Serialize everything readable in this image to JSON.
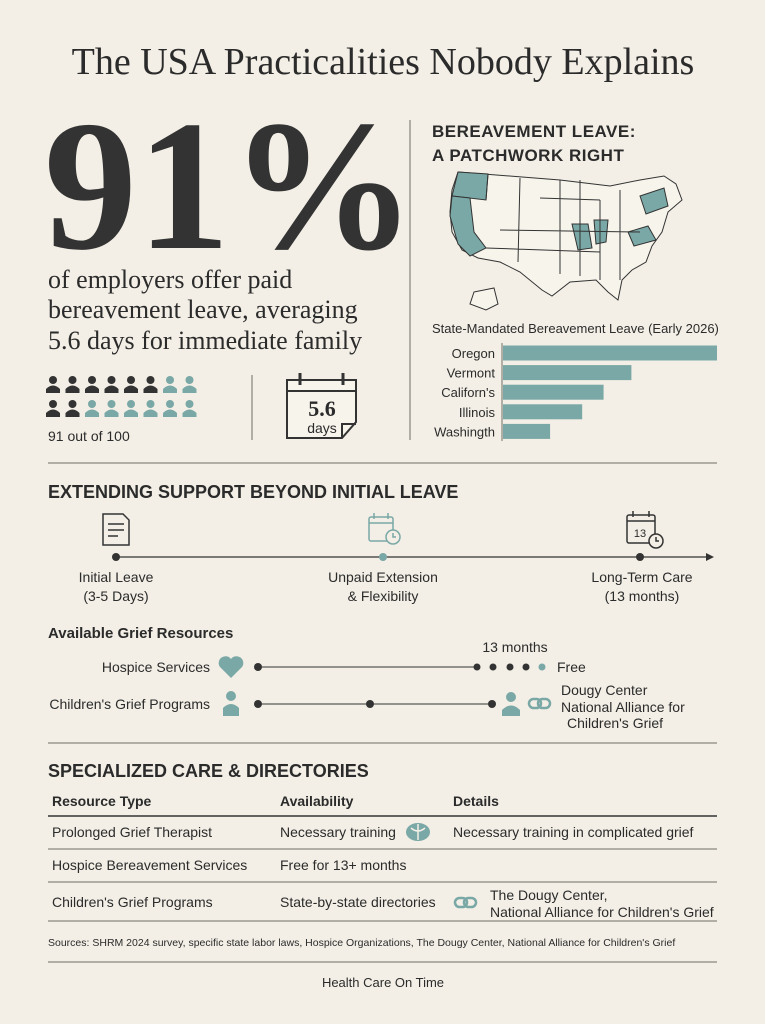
{
  "title": "The USA Practicalities Nobody Explains",
  "stat": {
    "headline": "91%",
    "text_lines": [
      "of employers offer paid",
      "bereavement leave, averaging",
      "5.6 days for immediate family"
    ],
    "icon_caption": "91 out of 100",
    "days_value": "5.6",
    "days_unit": "days"
  },
  "map": {
    "title_lines": [
      "BEREAVEMENT LEAVE:",
      "A PATCHWORK RIGHT"
    ]
  },
  "chart_data": {
    "type": "bar",
    "orientation": "horizontal",
    "title": "State-Mandated Bereavement Leave (Early 2026)",
    "categories": [
      "Oregon",
      "Vermont",
      "Californ's",
      "Illinois",
      "Washingth"
    ],
    "values": [
      100,
      60,
      47,
      37,
      22
    ],
    "color": "#7aa8a6"
  },
  "timeline": {
    "title": "EXTENDING SUPPORT BEYOND INITIAL LEAVE",
    "stages": [
      {
        "lines": [
          "Initial Leave",
          "(3-5 Days)"
        ]
      },
      {
        "lines": [
          "Unpaid Extension",
          "& Flexibility"
        ]
      },
      {
        "lines": [
          "Long-Term Care",
          "(13 months)"
        ],
        "icon_text": "13"
      }
    ]
  },
  "resources": {
    "title": "Available Grief Resources",
    "rows": [
      {
        "label": "Hospice Services",
        "duration": "13 months",
        "note_lines": [
          "Free"
        ]
      },
      {
        "label": "Children's Grief Programs",
        "note_lines": [
          "Dougy Center",
          "National Alliance for",
          "Children's Grief"
        ]
      }
    ]
  },
  "table": {
    "title": "SPECIALIZED CARE & DIRECTORIES",
    "headers": [
      "Resource Type",
      "Availability",
      "Details"
    ],
    "rows": [
      [
        [
          "Prolonged Grief Therapist"
        ],
        [
          "Necessary training"
        ],
        [
          "Necessary training in complicated grief"
        ]
      ],
      [
        [
          "Hospice Bereavement Services"
        ],
        [
          "Free for 13+ months"
        ],
        []
      ],
      [
        [
          "Children's Grief Programs"
        ],
        [
          "State-by-state directories"
        ],
        [
          "The Dougy Center,",
          "National Alliance for Children's Grief"
        ]
      ]
    ]
  },
  "sources": "Sources: SHRM 2024 survey, specific state labor laws, Hospice Organizations, The Dougy Center, National Alliance for Children's Grief",
  "footer": "Health Care On Time"
}
